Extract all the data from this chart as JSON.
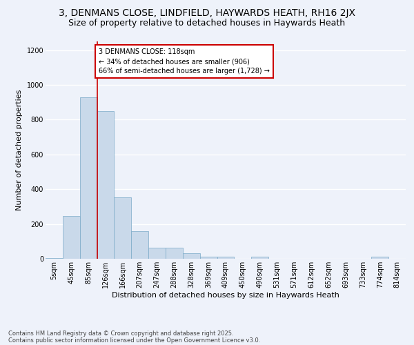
{
  "title": "3, DENMANS CLOSE, LINDFIELD, HAYWARDS HEATH, RH16 2JX",
  "subtitle": "Size of property relative to detached houses in Haywards Heath",
  "xlabel": "Distribution of detached houses by size in Haywards Heath",
  "ylabel": "Number of detached properties",
  "bin_labels": [
    "5sqm",
    "45sqm",
    "85sqm",
    "126sqm",
    "166sqm",
    "207sqm",
    "247sqm",
    "288sqm",
    "328sqm",
    "369sqm",
    "409sqm",
    "450sqm",
    "490sqm",
    "531sqm",
    "571sqm",
    "612sqm",
    "652sqm",
    "693sqm",
    "733sqm",
    "774sqm",
    "814sqm"
  ],
  "bar_values": [
    5,
    248,
    930,
    850,
    355,
    157,
    65,
    63,
    30,
    13,
    13,
    0,
    10,
    0,
    0,
    0,
    0,
    0,
    0,
    10,
    0
  ],
  "bar_color": "#c9d9ea",
  "bar_edge_color": "#7aaac8",
  "annotation_text": "3 DENMANS CLOSE: 118sqm\n← 34% of detached houses are smaller (906)\n66% of semi-detached houses are larger (1,728) →",
  "annotation_box_color": "#ffffff",
  "annotation_box_edge": "#cc0000",
  "vline_color": "#cc0000",
  "ylim": [
    0,
    1250
  ],
  "yticks": [
    0,
    200,
    400,
    600,
    800,
    1000,
    1200
  ],
  "background_color": "#eef2fa",
  "grid_color": "#ffffff",
  "footer_line1": "Contains HM Land Registry data © Crown copyright and database right 2025.",
  "footer_line2": "Contains public sector information licensed under the Open Government Licence v3.0.",
  "title_fontsize": 10,
  "subtitle_fontsize": 9,
  "axis_label_fontsize": 8,
  "tick_fontsize": 7,
  "footer_fontsize": 6
}
